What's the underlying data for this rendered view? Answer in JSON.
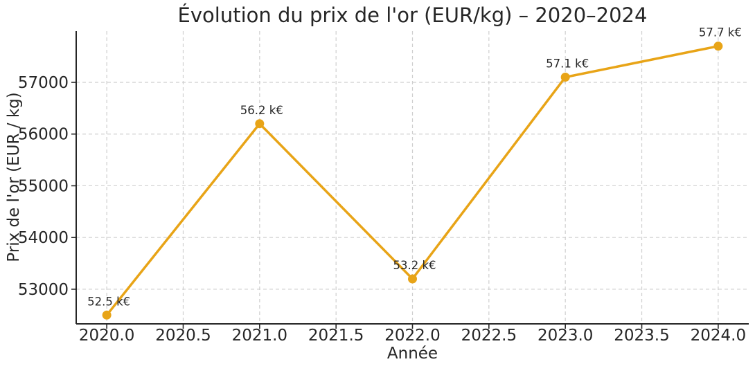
{
  "chart_data": {
    "type": "line",
    "title": "Évolution du prix de l'or (EUR/kg) – 2020–2024",
    "xlabel": "Année",
    "ylabel": "Prix de l'or (EUR / kg)",
    "x": [
      2020,
      2021,
      2022,
      2023,
      2024
    ],
    "values": [
      52500,
      56200,
      53200,
      57100,
      57700
    ],
    "point_labels": [
      "52.5 k€",
      "56.2 k€",
      "53.2 k€",
      "57.1 k€",
      "57.7 k€"
    ],
    "xticks": [
      2020.0,
      2020.5,
      2021.0,
      2021.5,
      2022.0,
      2022.5,
      2023.0,
      2023.5,
      2024.0
    ],
    "xtick_labels": [
      "2020.0",
      "2020.5",
      "2021.0",
      "2021.5",
      "2022.0",
      "2022.5",
      "2023.0",
      "2023.5",
      "2024.0"
    ],
    "yticks": [
      53000,
      54000,
      55000,
      56000,
      57000
    ],
    "ytick_labels": [
      "53000",
      "54000",
      "55000",
      "56000",
      "57000"
    ],
    "xlim": [
      2019.8,
      2024.2
    ],
    "ylim": [
      52330,
      57990
    ],
    "grid": true,
    "grid_style": "dashed",
    "legend_position": "none",
    "colors": {
      "line": "#E8A417",
      "marker": "#E8A417",
      "grid": "#CFCFCF",
      "axis": "#262626",
      "text": "#262626"
    }
  }
}
